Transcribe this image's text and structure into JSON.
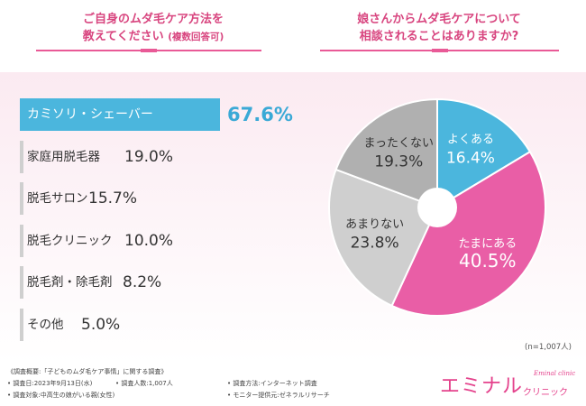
{
  "left_panel": {
    "heading_line1": "ご自身のムダ毛ケア方法を",
    "heading_line2": "教えてください",
    "heading_note": "(複数回答可)"
  },
  "right_panel": {
    "heading_line1": "娘さんからムダ毛ケアについて",
    "heading_line2": "相談されることはありますか?",
    "sample_note": "(n=1,007人)"
  },
  "colors": {
    "blue": "#4bb6dd",
    "pink": "#e95ea6",
    "light_gray": "#cfcfcf",
    "mid_gray": "#b0b0b0",
    "accent": "#d8457f"
  },
  "chart_data": [
    {
      "type": "bar",
      "orientation": "horizontal",
      "categories": [
        "カミソリ・シェーバー",
        "家庭用脱毛器",
        "脱毛サロン",
        "脱毛クリニック",
        "脱毛剤・除毛剤",
        "その他"
      ],
      "values": [
        67.6,
        19.0,
        15.7,
        10.0,
        8.2,
        5.0
      ],
      "value_labels": [
        "67.6%",
        "19.0%",
        "15.7%",
        "10.0%",
        "8.2%",
        "5.0%"
      ],
      "unit": "%"
    },
    {
      "type": "pie",
      "style": "donut",
      "categories": [
        "よくある",
        "たまにある",
        "あまりない",
        "まったくない"
      ],
      "values": [
        16.4,
        40.5,
        23.8,
        19.3
      ],
      "value_labels": [
        "16.4%",
        "40.5%",
        "23.8%",
        "19.3%"
      ],
      "colors": [
        "#4bb6dd",
        "#e95ea6",
        "#cfcfcf",
        "#b0b0b0"
      ]
    }
  ],
  "footer": {
    "title": "《調査概要:「子どものムダ毛ケア事情」に関する調査》",
    "date": "• 調査日:2023年9月13日(水)",
    "count": "• 調査人数:1,007人",
    "method": "• 調査方法:インターネット調査",
    "target": "• 調査対象:中高生の娘がいる親(女性)",
    "provider": "• モニター提供元:ゼネラルリサーチ"
  },
  "logo": {
    "main": "エミナル",
    "sub": "クリニック",
    "script": "Eminal clinic"
  }
}
